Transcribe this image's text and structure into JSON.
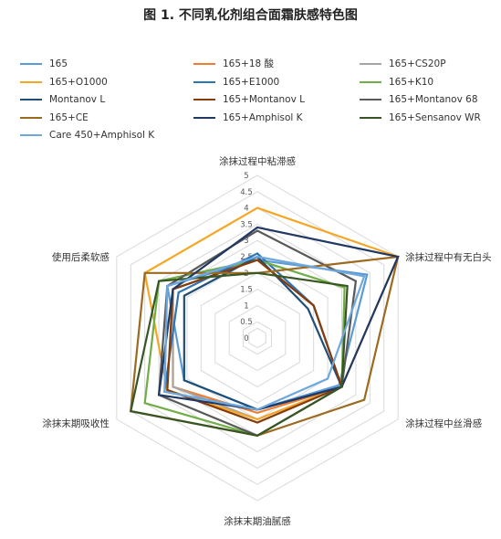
{
  "chart_data": {
    "type": "radar",
    "title": "图 1. 不同乳化剂组合面霜肤感特色图",
    "axes": [
      "涂抹过程中粘滞感",
      "涂抹过程中有无白头",
      "涂抹过程中丝滑感",
      "涂抹末期油腻感",
      "涂抹末期吸收性",
      "使用后柔软感"
    ],
    "rlim": [
      0,
      5
    ],
    "ticks": [
      "0",
      "0.5",
      "1",
      "1.5",
      "2",
      "2.5",
      "3",
      "3.5",
      "4",
      "4.5",
      "5"
    ],
    "grid": true,
    "legend_position": "top",
    "series": [
      {
        "name": "165",
        "color": "#5b9bd5",
        "values": [
          2.4,
          3.9,
          2.9,
          2.2,
          2.6,
          3.2
        ]
      },
      {
        "name": "165+18 酸",
        "color": "#ed7d31",
        "values": [
          2.4,
          2.0,
          3.0,
          2.3,
          3.0,
          3.0
        ]
      },
      {
        "name": "165+CS20P",
        "color": "#a5a5a5",
        "values": [
          2.4,
          2.0,
          3.0,
          2.5,
          3.0,
          3.0
        ]
      },
      {
        "name": "165+O1000",
        "color": "#f5a623",
        "values": [
          4.0,
          5.0,
          3.0,
          2.5,
          3.2,
          4.0
        ]
      },
      {
        "name": "165+E1000",
        "color": "#2e75b6",
        "values": [
          2.6,
          2.0,
          3.0,
          2.2,
          3.3,
          2.8
        ]
      },
      {
        "name": "165+K10",
        "color": "#70ad47",
        "values": [
          2.4,
          3.1,
          3.0,
          3.0,
          4.0,
          3.5
        ]
      },
      {
        "name": "Montanov L",
        "color": "#1f4e79",
        "values": [
          2.5,
          1.8,
          3.0,
          2.2,
          2.6,
          2.6
        ]
      },
      {
        "name": "165+Montanov L",
        "color": "#843c0c",
        "values": [
          2.4,
          2.0,
          3.0,
          2.6,
          3.2,
          3.0
        ]
      },
      {
        "name": "165+Montanov 68",
        "color": "#595959",
        "values": [
          3.3,
          3.5,
          3.0,
          3.0,
          3.5,
          3.2
        ]
      },
      {
        "name": "165+CE",
        "color": "#9c6a1f",
        "values": [
          2.0,
          5.0,
          3.8,
          3.0,
          4.5,
          4.0
        ]
      },
      {
        "name": "165+Amphisol K",
        "color": "#203864",
        "values": [
          3.4,
          5.0,
          3.0,
          2.2,
          3.5,
          3.0
        ]
      },
      {
        "name": "165+Sensanov WR",
        "color": "#375623",
        "values": [
          2.0,
          3.2,
          3.0,
          3.0,
          4.5,
          3.5
        ]
      },
      {
        "name": "Care 450+Amphisol K",
        "color": "#6fa8dc",
        "values": [
          2.5,
          3.8,
          2.5,
          2.2,
          3.3,
          3.2
        ]
      }
    ]
  }
}
